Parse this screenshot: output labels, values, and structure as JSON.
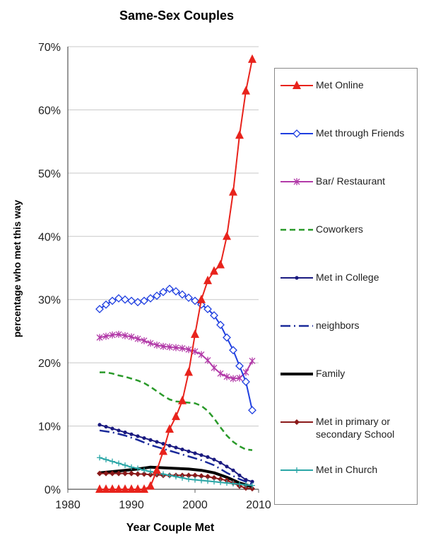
{
  "chart_data": {
    "type": "line",
    "title": "Same-Sex Couples",
    "xlabel": "Year Couple Met",
    "ylabel": "percentage who met this way",
    "xlim": [
      1980,
      2010
    ],
    "ylim": [
      0,
      70
    ],
    "x_ticks": [
      "1980",
      "1990",
      "2000",
      "2010"
    ],
    "y_ticks": [
      "0%",
      "10%",
      "20%",
      "30%",
      "40%",
      "50%",
      "60%",
      "70%"
    ],
    "grid": "horizontal",
    "legend_position": "right",
    "series": [
      {
        "name": "Met Online",
        "color": "#e8231c",
        "style": "solid",
        "marker": "triangle",
        "x": [
          1985,
          1986,
          1987,
          1988,
          1989,
          1990,
          1991,
          1992,
          1993,
          1994,
          1995,
          1996,
          1997,
          1998,
          1999,
          2000,
          2001,
          2002,
          2003,
          2004,
          2005,
          2006,
          2007,
          2008,
          2009
        ],
        "y": [
          0,
          0,
          0,
          0,
          0,
          0,
          0,
          0,
          0.5,
          3,
          6,
          9.5,
          11.5,
          14,
          18.5,
          24.5,
          30,
          33,
          34.5,
          35.5,
          40,
          47,
          56,
          63,
          68
        ]
      },
      {
        "name": "Met through Friends",
        "color": "#1f3fe0",
        "style": "solid",
        "marker": "diamond",
        "x": [
          1985,
          1986,
          1987,
          1988,
          1989,
          1990,
          1991,
          1992,
          1993,
          1994,
          1995,
          1996,
          1997,
          1998,
          1999,
          2000,
          2001,
          2002,
          2003,
          2004,
          2005,
          2006,
          2007,
          2008,
          2009
        ],
        "y": [
          28.5,
          29.2,
          29.8,
          30.2,
          30.0,
          29.8,
          29.6,
          29.8,
          30.2,
          30.6,
          31.2,
          31.7,
          31.3,
          30.8,
          30.3,
          29.8,
          29.2,
          28.5,
          27.5,
          26,
          24,
          22,
          19.5,
          17,
          12.5
        ]
      },
      {
        "name": "Bar/ Restaurant",
        "color": "#b23aa8",
        "style": "solid",
        "marker": "star",
        "x": [
          1985,
          1986,
          1987,
          1988,
          1989,
          1990,
          1991,
          1992,
          1993,
          1994,
          1995,
          1996,
          1997,
          1998,
          1999,
          2000,
          2001,
          2002,
          2003,
          2004,
          2005,
          2006,
          2007,
          2008,
          2009
        ],
        "y": [
          24,
          24.2,
          24.4,
          24.5,
          24.3,
          24.1,
          23.8,
          23.5,
          23.1,
          22.8,
          22.6,
          22.5,
          22.4,
          22.3,
          22.1,
          21.8,
          21.3,
          20.4,
          19.2,
          18.3,
          17.8,
          17.5,
          17.6,
          18.5,
          20.3
        ]
      },
      {
        "name": "Coworkers",
        "color": "#2a9a2a",
        "style": "dashed",
        "marker": "none",
        "x": [
          1985,
          1986,
          1987,
          1988,
          1989,
          1990,
          1991,
          1992,
          1993,
          1994,
          1995,
          1996,
          1997,
          1998,
          1999,
          2000,
          2001,
          2002,
          2003,
          2004,
          2005,
          2006,
          2007,
          2008,
          2009
        ],
        "y": [
          18.5,
          18.5,
          18.3,
          18,
          17.8,
          17.5,
          17.2,
          16.8,
          16.2,
          15.5,
          14.8,
          14.2,
          13.9,
          13.8,
          13.7,
          13.6,
          13.2,
          12.4,
          11.2,
          9.8,
          8.5,
          7.5,
          6.8,
          6.3,
          6.2
        ]
      },
      {
        "name": "Met in College",
        "color": "#1a1a80",
        "style": "solid",
        "marker": "dot",
        "x": [
          1985,
          1986,
          1987,
          1988,
          1989,
          1990,
          1991,
          1992,
          1993,
          1994,
          1995,
          1996,
          1997,
          1998,
          1999,
          2000,
          2001,
          2002,
          2003,
          2004,
          2005,
          2006,
          2007,
          2008,
          2009
        ],
        "y": [
          10.2,
          9.9,
          9.6,
          9.3,
          9.0,
          8.7,
          8.4,
          8.1,
          7.8,
          7.5,
          7.2,
          6.9,
          6.6,
          6.3,
          6.0,
          5.7,
          5.4,
          5.1,
          4.7,
          4.2,
          3.6,
          3.0,
          2.2,
          1.5,
          1.2
        ]
      },
      {
        "name": "neighbors",
        "color": "#1a2a9a",
        "style": "dashdot",
        "marker": "none",
        "x": [
          1985,
          1987,
          1989,
          1991,
          1993,
          1995,
          1997,
          1999,
          2001,
          2003,
          2005,
          2007,
          2009
        ],
        "y": [
          9.3,
          9.0,
          8.5,
          7.8,
          7.0,
          6.4,
          5.8,
          5.2,
          4.6,
          3.8,
          2.6,
          1.6,
          0.8
        ]
      },
      {
        "name": "Family",
        "color": "#000000",
        "style": "thick",
        "marker": "none",
        "x": [
          1985,
          1987,
          1989,
          1991,
          1993,
          1995,
          1997,
          1999,
          2001,
          2003,
          2005,
          2007,
          2009
        ],
        "y": [
          2.6,
          2.8,
          3.0,
          3.2,
          3.5,
          3.4,
          3.3,
          3.2,
          3.0,
          2.6,
          1.9,
          1.0,
          0.4
        ]
      },
      {
        "name": "Met in primary or secondary School",
        "color": "#8b1a1a",
        "style": "solid",
        "marker": "diamond-filled",
        "x": [
          1985,
          1986,
          1987,
          1988,
          1989,
          1990,
          1991,
          1992,
          1993,
          1994,
          1995,
          1996,
          1997,
          1998,
          1999,
          2000,
          2001,
          2002,
          2003,
          2004,
          2005,
          2006,
          2007,
          2008,
          2009
        ],
        "y": [
          2.5,
          2.5,
          2.5,
          2.5,
          2.5,
          2.5,
          2.4,
          2.4,
          2.3,
          2.3,
          2.2,
          2.2,
          2.2,
          2.2,
          2.2,
          2.2,
          2.1,
          2.0,
          1.8,
          1.6,
          1.4,
          1.0,
          0.5,
          0.2,
          0.1
        ]
      },
      {
        "name": "Met in Church",
        "color": "#2aa6a6",
        "style": "solid",
        "marker": "plus",
        "x": [
          1985,
          1986,
          1987,
          1988,
          1989,
          1990,
          1991,
          1992,
          1993,
          1994,
          1995,
          1996,
          1997,
          1998,
          1999,
          2000,
          2001,
          2002,
          2003,
          2004,
          2005,
          2006,
          2007,
          2008,
          2009
        ],
        "y": [
          5.0,
          4.7,
          4.4,
          4.1,
          3.8,
          3.5,
          3.3,
          3.0,
          2.8,
          2.6,
          2.4,
          2.2,
          2.0,
          1.8,
          1.6,
          1.5,
          1.4,
          1.3,
          1.2,
          1.1,
          1.0,
          0.9,
          0.8,
          0.7,
          0.6
        ]
      }
    ]
  }
}
